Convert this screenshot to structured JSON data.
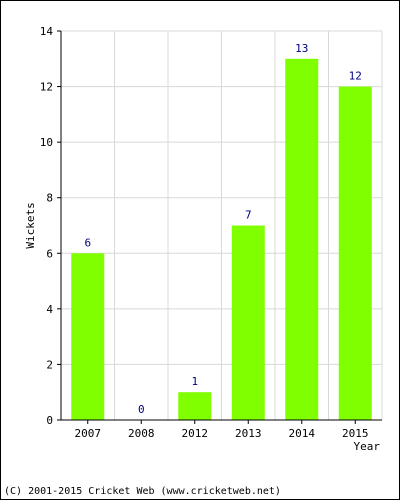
{
  "chart_data": {
    "type": "bar",
    "categories": [
      "2007",
      "2008",
      "2012",
      "2013",
      "2014",
      "2015"
    ],
    "values": [
      6,
      0,
      1,
      7,
      13,
      12
    ],
    "title": "",
    "xlabel": "Year",
    "ylabel": "Wickets",
    "ylim": [
      0,
      14
    ],
    "yticks": [
      0,
      2,
      4,
      6,
      8,
      10,
      12,
      14
    ],
    "grid": true,
    "legend": "none",
    "bar_color": "#80ff00",
    "label_color": "#000080"
  },
  "footer": {
    "copyright": "(C) 2001-2015 Cricket Web (www.cricketweb.net)"
  }
}
